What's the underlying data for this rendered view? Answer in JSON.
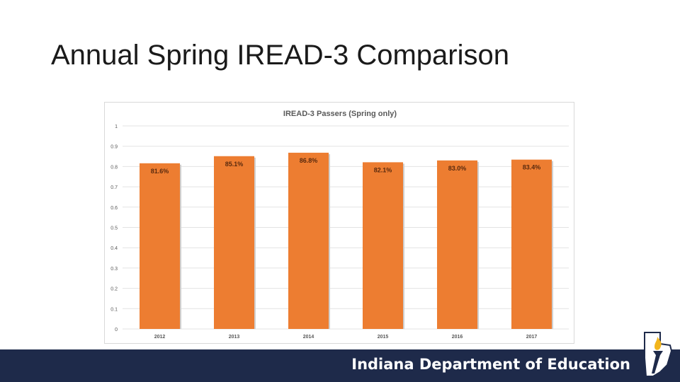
{
  "slide": {
    "title": "Annual Spring IREAD-3 Comparison"
  },
  "footer": {
    "org_name": "Indiana Department of Education"
  },
  "colors": {
    "bar": "#ED7D31",
    "footer_bg": "#1e2a4a",
    "logo_gold": "#f2b51c"
  },
  "chart_data": {
    "type": "bar",
    "title": "IREAD-3 Passers (Spring only)",
    "categories": [
      "2012",
      "2013",
      "2014",
      "2015",
      "2016",
      "2017"
    ],
    "values": [
      0.816,
      0.851,
      0.868,
      0.821,
      0.83,
      0.834
    ],
    "data_labels": [
      "81.6%",
      "85.1%",
      "86.8%",
      "82.1%",
      "83.0%",
      "83.4%"
    ],
    "ylim": [
      0,
      1
    ],
    "yticks": [
      0,
      0.1,
      0.2,
      0.3,
      0.4,
      0.5,
      0.6,
      0.7,
      0.8,
      0.9,
      1
    ],
    "ytick_labels": [
      "0",
      "0.1",
      "0.2",
      "0.3",
      "0.4",
      "0.5",
      "0.6",
      "0.7",
      "0.8",
      "0.9",
      "1"
    ],
    "grid": true,
    "legend": "none"
  }
}
